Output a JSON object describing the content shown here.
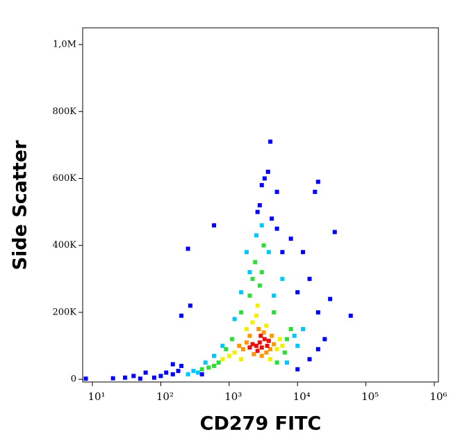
{
  "chart_data": {
    "type": "scatter",
    "x_label": "CD279 FITC",
    "y_label": "Side Scatter",
    "xscale": "log",
    "xlim": [
      7.2,
      1150000
    ],
    "ylim": [
      -8000,
      1050000
    ],
    "xticks": [
      {
        "value": 10,
        "label": "10¹"
      },
      {
        "value": 100,
        "label": "10²"
      },
      {
        "value": 1000,
        "label": "10³"
      },
      {
        "value": 10000,
        "label": "10⁴"
      },
      {
        "value": 100000,
        "label": "10⁵"
      },
      {
        "value": 1000000,
        "label": "10⁶"
      }
    ],
    "yticks": [
      0,
      {
        "value": 200000,
        "label": "200K"
      },
      {
        "value": 400000,
        "label": "400K"
      },
      {
        "value": 600000,
        "label": "600K"
      },
      {
        "value": 800000,
        "label": "800K"
      },
      {
        "value": 1000000,
        "label": "1,0M"
      }
    ],
    "series": [
      {
        "color": "#0000ff",
        "x": [
          20,
          30,
          40,
          60,
          80,
          100,
          120,
          150,
          200,
          180,
          2800,
          3000,
          3300,
          2600,
          3700,
          4000,
          5000,
          4200,
          8000,
          12000,
          15000,
          20000,
          30000,
          60000,
          35000,
          18000,
          20000,
          600,
          250,
          200,
          270,
          15000,
          20000,
          25000,
          10000,
          400,
          150,
          50,
          8,
          5000,
          6000,
          10000
        ],
        "y": [
          3000,
          5000,
          10000,
          20000,
          5000,
          10000,
          20000,
          15000,
          40000,
          25000,
          520000,
          580000,
          600000,
          500000,
          620000,
          710000,
          560000,
          480000,
          420000,
          380000,
          300000,
          200000,
          240000,
          190000,
          440000,
          560000,
          590000,
          460000,
          390000,
          190000,
          220000,
          60000,
          90000,
          120000,
          30000,
          15000,
          45000,
          2000,
          2000,
          450000,
          380000,
          260000
        ]
      },
      {
        "color": "#00c8ff",
        "x": [
          300,
          350,
          250,
          450,
          1200,
          1800,
          2500,
          3000,
          2000,
          9000,
          10000,
          4500,
          6000,
          3800,
          1500,
          800,
          12000,
          7000,
          600
        ],
        "y": [
          25000,
          20000,
          15000,
          50000,
          180000,
          380000,
          430000,
          460000,
          320000,
          130000,
          100000,
          250000,
          300000,
          380000,
          260000,
          100000,
          150000,
          50000,
          70000
        ]
      },
      {
        "color": "#2edc3a",
        "x": [
          700,
          600,
          900,
          1100,
          2000,
          2800,
          3000,
          2400,
          7000,
          6500,
          5000,
          500,
          1500,
          3200,
          8000,
          400,
          2200,
          4500
        ],
        "y": [
          50000,
          40000,
          90000,
          120000,
          250000,
          280000,
          320000,
          350000,
          120000,
          80000,
          50000,
          35000,
          200000,
          400000,
          150000,
          30000,
          300000,
          200000
        ]
      },
      {
        "color": "#f0f000",
        "x": [
          1200,
          5000,
          1500,
          2200,
          5500,
          1000,
          3500,
          2500,
          1800,
          6000,
          4000,
          800,
          2600
        ],
        "y": [
          80000,
          90000,
          60000,
          170000,
          120000,
          70000,
          160000,
          190000,
          150000,
          100000,
          60000,
          60000,
          220000
        ]
      },
      {
        "color": "#ff9600",
        "x": [
          1800,
          4000,
          2300,
          3200,
          1600,
          4500,
          2700,
          3500,
          2000,
          4200,
          1400,
          3000
        ],
        "y": [
          110000,
          90000,
          75000,
          140000,
          90000,
          105000,
          150000,
          80000,
          130000,
          130000,
          100000,
          70000
        ]
      },
      {
        "color": "#e81010",
        "x": [
          2500,
          2800,
          3000,
          2200,
          3300,
          2600,
          3600,
          2000,
          2900,
          3800
        ],
        "y": [
          100000,
          110000,
          95000,
          105000,
          120000,
          85000,
          100000,
          95000,
          130000,
          115000
        ]
      }
    ]
  }
}
